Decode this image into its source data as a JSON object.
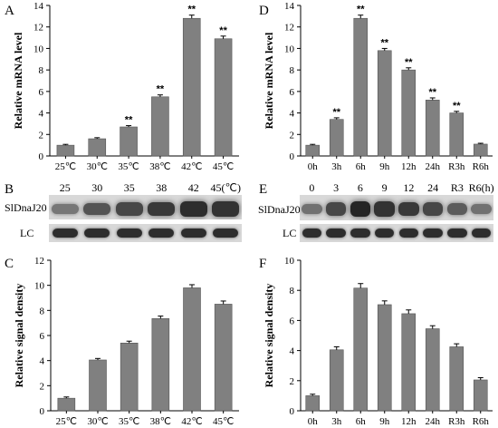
{
  "panels": {
    "A": "A",
    "B": "B",
    "C": "C",
    "D": "D",
    "E": "E",
    "F": "F"
  },
  "chart_data": [
    {
      "panel": "A",
      "type": "bar",
      "categories": [
        "25℃",
        "30℃",
        "35℃",
        "38℃",
        "42℃",
        "45℃"
      ],
      "values": [
        1.0,
        1.6,
        2.7,
        5.5,
        12.8,
        10.9
      ],
      "errors": [
        0.08,
        0.1,
        0.12,
        0.18,
        0.3,
        0.25
      ],
      "annotations": [
        "",
        "",
        "**",
        "**",
        "**",
        "**"
      ],
      "ylabel": "Relative mRNA level",
      "ylim": [
        0,
        14
      ],
      "yticks": [
        "0",
        "2",
        "4",
        "6",
        "8",
        "10",
        "12",
        "14"
      ],
      "grid": false
    },
    {
      "panel": "C",
      "type": "bar",
      "categories": [
        "25℃",
        "30℃",
        "35℃",
        "38℃",
        "42℃",
        "45℃"
      ],
      "values": [
        1.0,
        4.05,
        5.4,
        7.35,
        9.8,
        8.5
      ],
      "errors": [
        0.1,
        0.12,
        0.15,
        0.2,
        0.25,
        0.25
      ],
      "ylabel": "Relative signal density",
      "ylim": [
        0,
        12
      ],
      "yticks": [
        "0",
        "2",
        "4",
        "6",
        "8",
        "10",
        "12"
      ],
      "grid": false
    },
    {
      "panel": "D",
      "type": "bar",
      "categories": [
        "0h",
        "3h",
        "6h",
        "9h",
        "12h",
        "24h",
        "R3h",
        "R6h"
      ],
      "values": [
        1.0,
        3.4,
        12.8,
        9.8,
        8.0,
        5.2,
        4.0,
        1.1
      ],
      "errors": [
        0.08,
        0.15,
        0.3,
        0.2,
        0.2,
        0.2,
        0.15,
        0.08
      ],
      "annotations": [
        "",
        "**",
        "**",
        "**",
        "**",
        "**",
        "**",
        ""
      ],
      "ylabel": "Relative mRNA level",
      "ylim": [
        0,
        14
      ],
      "yticks": [
        "0",
        "2",
        "4",
        "6",
        "8",
        "10",
        "12",
        "14"
      ],
      "grid": false
    },
    {
      "panel": "F",
      "type": "bar",
      "categories": [
        "0h",
        "3h",
        "6h",
        "9h",
        "12h",
        "24h",
        "R3h",
        "R6h"
      ],
      "values": [
        1.0,
        4.05,
        8.15,
        7.05,
        6.45,
        5.45,
        4.25,
        2.05
      ],
      "errors": [
        0.1,
        0.2,
        0.3,
        0.25,
        0.25,
        0.2,
        0.2,
        0.15
      ],
      "ylabel": "Relative signal density",
      "ylim": [
        0,
        10
      ],
      "yticks": [
        "0",
        "2",
        "4",
        "6",
        "8",
        "10"
      ],
      "grid": false
    }
  ],
  "blots": {
    "B": {
      "lanes": [
        "25",
        "30",
        "35",
        "38",
        "42",
        "45(℃)"
      ],
      "target_label": "SlDnaJ20",
      "control_label": "LC",
      "target_intensity": [
        0.35,
        0.6,
        0.7,
        0.8,
        0.9,
        0.85
      ],
      "control_intensity": [
        0.85,
        0.85,
        0.85,
        0.85,
        0.85,
        0.85
      ]
    },
    "E": {
      "lanes": [
        "0",
        "3",
        "6",
        "9",
        "12",
        "24",
        "R3",
        "R6(h)"
      ],
      "target_label": "SlDnaJ20",
      "control_label": "LC",
      "target_intensity": [
        0.4,
        0.7,
        0.95,
        0.85,
        0.8,
        0.7,
        0.55,
        0.4
      ],
      "control_intensity": [
        0.85,
        0.85,
        0.85,
        0.85,
        0.85,
        0.85,
        0.85,
        0.85
      ]
    }
  },
  "colors": {
    "bar": "#808080",
    "axis": "#000000",
    "blot_bg": "#d8d8d8",
    "band": "#1a1a1a"
  }
}
